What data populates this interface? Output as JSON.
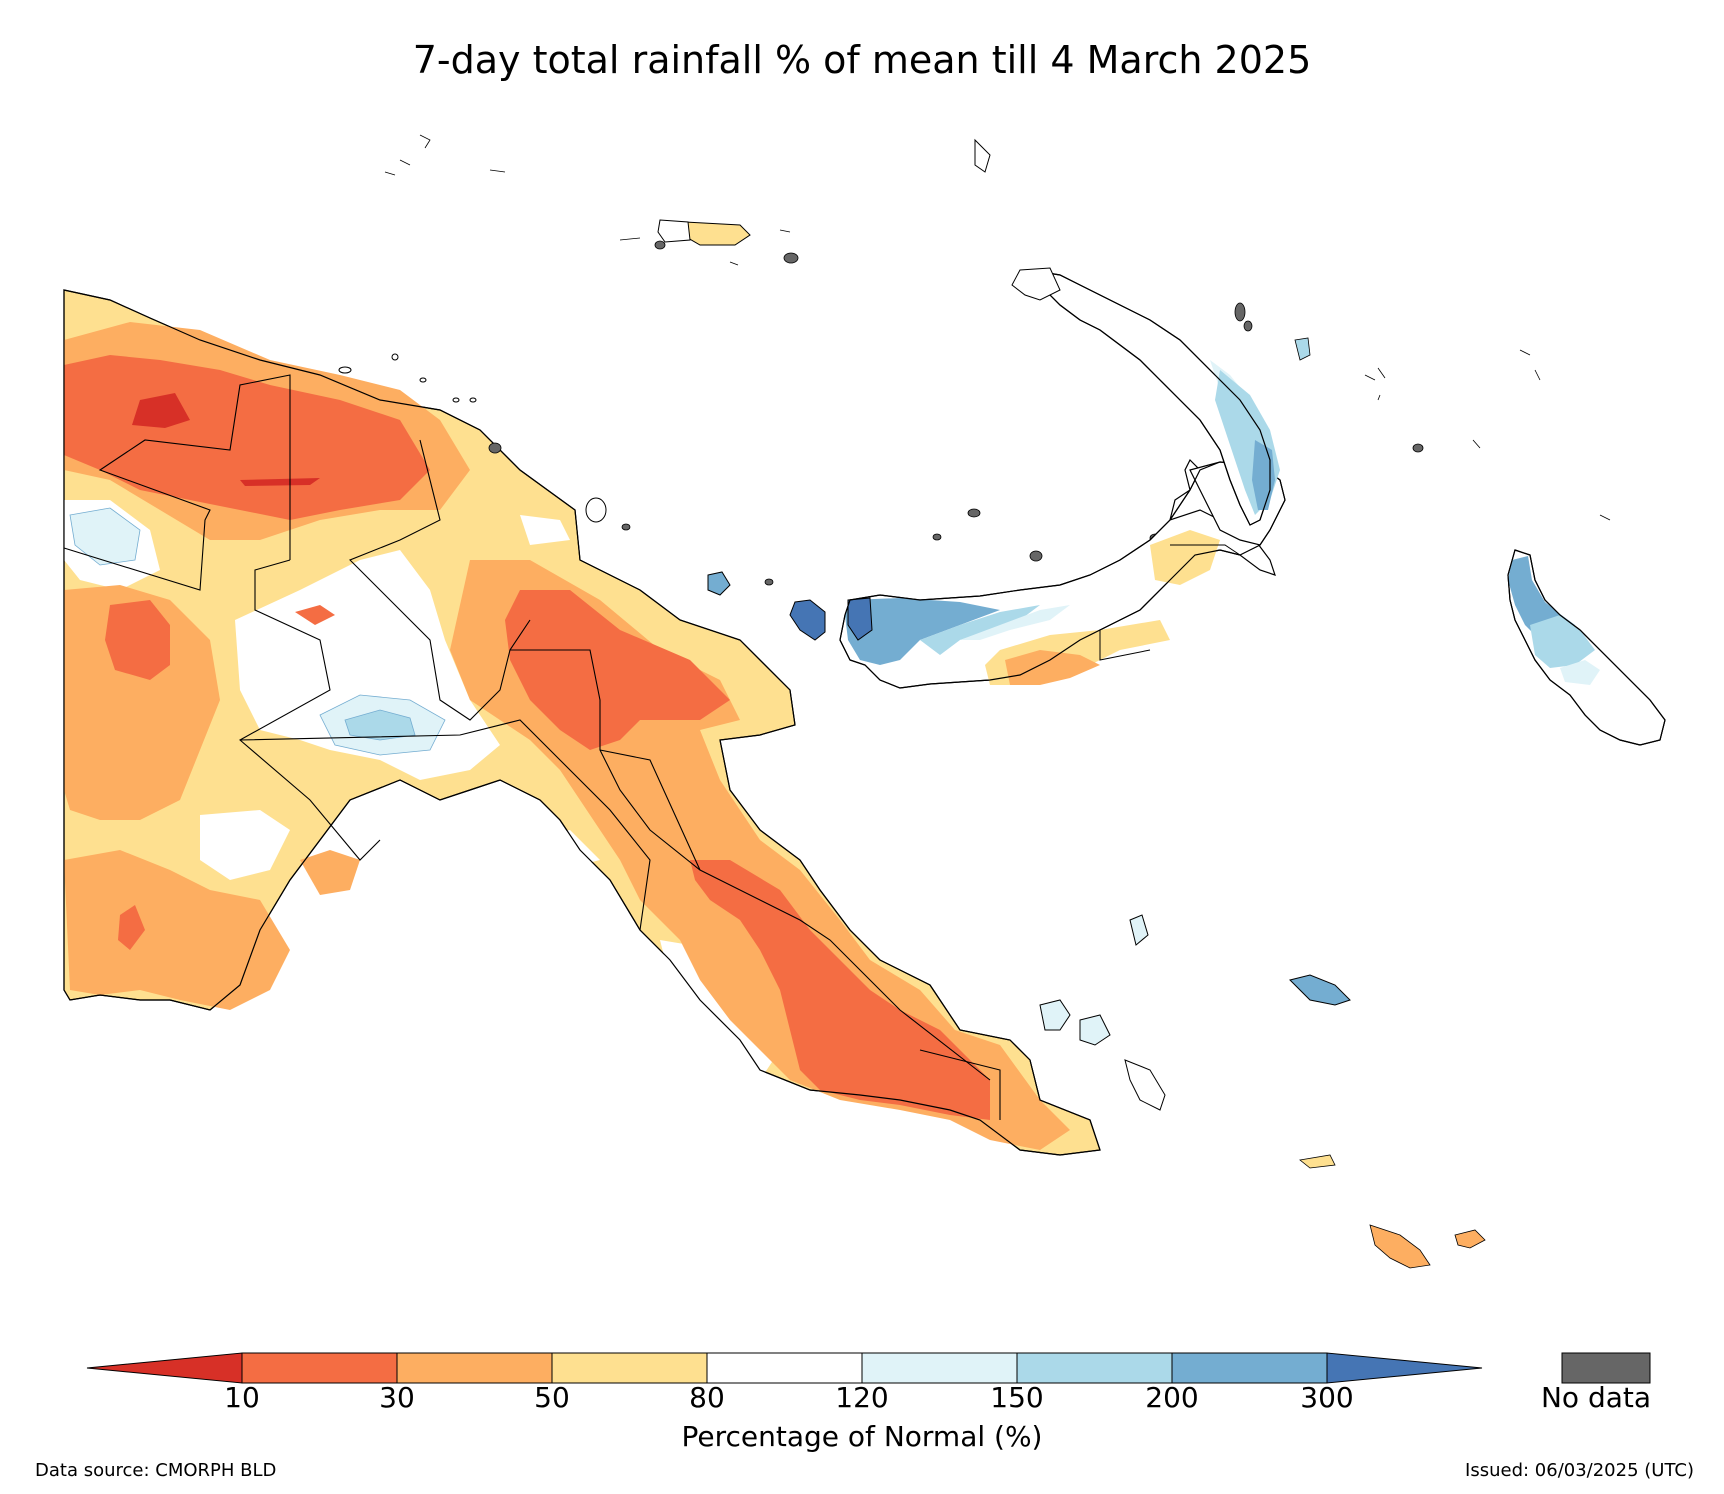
{
  "title": "7-day total rainfall % of mean till 4 March 2025",
  "colorbar": {
    "label": "Percentage of Normal (%)",
    "ticks": [
      "10",
      "30",
      "50",
      "80",
      "120",
      "150",
      "200",
      "300"
    ],
    "colors": {
      "below_10": "#d73027",
      "10_30": "#f46d43",
      "30_50": "#fdae61",
      "50_80": "#fee090",
      "80_120": "#ffffff",
      "120_150": "#e0f3f8",
      "150_200": "#abd9e9",
      "200_300": "#74add1",
      "above_300": "#4575b4"
    },
    "no_data_label": "No data",
    "no_data_color": "#666666"
  },
  "footer": {
    "source": "Data source: CMORPH BLD",
    "issued": "Issued: 06/03/2025 (UTC)"
  }
}
